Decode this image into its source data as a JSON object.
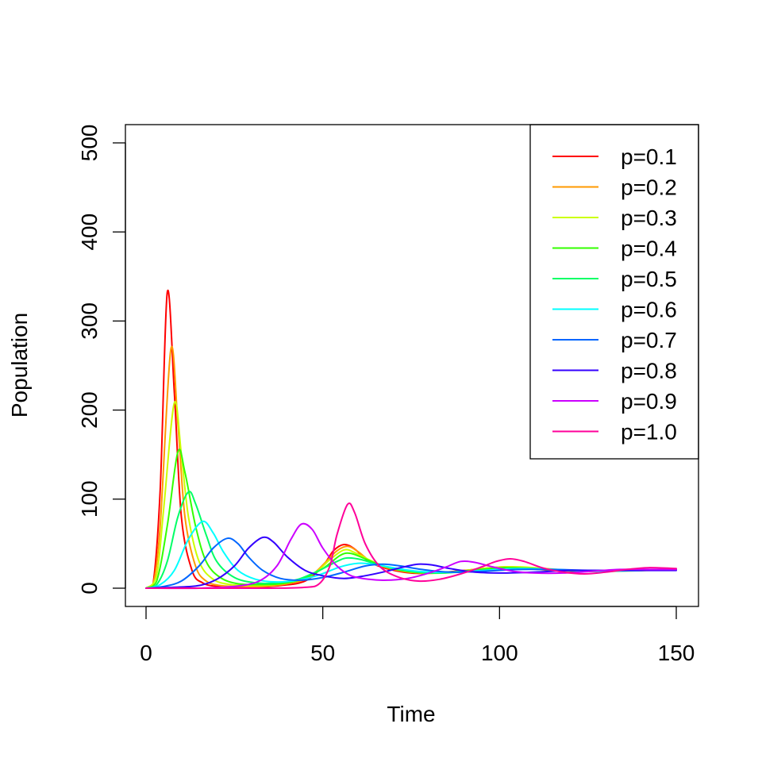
{
  "chart_data": {
    "type": "line",
    "xlabel": "Time",
    "ylabel": "Population",
    "xlim": [
      0,
      150
    ],
    "ylim": [
      0,
      500
    ],
    "x_ticks": [
      0,
      50,
      100,
      150
    ],
    "y_ticks": [
      0,
      100,
      200,
      300,
      400,
      500
    ],
    "x_tick_labels": [
      "0",
      "50",
      "100",
      "150"
    ],
    "y_tick_labels": [
      "0",
      "100",
      "200",
      "300",
      "400",
      "500"
    ],
    "grid": false,
    "legend_position": "top-right",
    "series": [
      {
        "name": "p=0.1",
        "color": "#FF0000",
        "points": [
          [
            0,
            0
          ],
          [
            2,
            5
          ],
          [
            4,
            110
          ],
          [
            6,
            332
          ],
          [
            8,
            220
          ],
          [
            10,
            80
          ],
          [
            13,
            20
          ],
          [
            16,
            6
          ],
          [
            20,
            2
          ],
          [
            25,
            1
          ],
          [
            30,
            1
          ],
          [
            38,
            3
          ],
          [
            45,
            8
          ],
          [
            50,
            25
          ],
          [
            53,
            42
          ],
          [
            56,
            49
          ],
          [
            59,
            44
          ],
          [
            63,
            30
          ],
          [
            68,
            22
          ],
          [
            75,
            17
          ],
          [
            82,
            17
          ],
          [
            90,
            20
          ],
          [
            100,
            23
          ],
          [
            108,
            22
          ],
          [
            115,
            20
          ],
          [
            125,
            19
          ],
          [
            135,
            20
          ],
          [
            150,
            21
          ]
        ]
      },
      {
        "name": "p=0.2",
        "color": "#FF9900",
        "points": [
          [
            0,
            0
          ],
          [
            2,
            4
          ],
          [
            4,
            70
          ],
          [
            7,
            268
          ],
          [
            9,
            185
          ],
          [
            11,
            80
          ],
          [
            14,
            25
          ],
          [
            17,
            8
          ],
          [
            21,
            3
          ],
          [
            27,
            2
          ],
          [
            33,
            2
          ],
          [
            40,
            5
          ],
          [
            46,
            12
          ],
          [
            51,
            30
          ],
          [
            54,
            42
          ],
          [
            57,
            47
          ],
          [
            60,
            41
          ],
          [
            64,
            29
          ],
          [
            70,
            21
          ],
          [
            78,
            17
          ],
          [
            86,
            18
          ],
          [
            95,
            22
          ],
          [
            102,
            24
          ],
          [
            110,
            22
          ],
          [
            118,
            20
          ],
          [
            128,
            19
          ],
          [
            140,
            20
          ],
          [
            150,
            21
          ]
        ]
      },
      {
        "name": "p=0.3",
        "color": "#CCFF00",
        "points": [
          [
            0,
            0
          ],
          [
            3,
            15
          ],
          [
            5,
            90
          ],
          [
            8,
            208
          ],
          [
            10,
            150
          ],
          [
            12,
            80
          ],
          [
            15,
            30
          ],
          [
            19,
            10
          ],
          [
            24,
            4
          ],
          [
            30,
            3
          ],
          [
            36,
            4
          ],
          [
            42,
            8
          ],
          [
            48,
            18
          ],
          [
            52,
            32
          ],
          [
            56,
            43
          ],
          [
            59,
            40
          ],
          [
            63,
            32
          ],
          [
            68,
            24
          ],
          [
            75,
            18
          ],
          [
            84,
            17
          ],
          [
            93,
            21
          ],
          [
            102,
            24
          ],
          [
            110,
            23
          ],
          [
            120,
            20
          ],
          [
            132,
            19
          ],
          [
            150,
            21
          ]
        ]
      },
      {
        "name": "p=0.4",
        "color": "#33FF00",
        "points": [
          [
            0,
            0
          ],
          [
            3,
            8
          ],
          [
            6,
            70
          ],
          [
            9,
            153
          ],
          [
            11,
            130
          ],
          [
            14,
            70
          ],
          [
            17,
            30
          ],
          [
            21,
            12
          ],
          [
            26,
            5
          ],
          [
            32,
            4
          ],
          [
            38,
            5
          ],
          [
            44,
            10
          ],
          [
            50,
            22
          ],
          [
            55,
            37
          ],
          [
            58,
            39
          ],
          [
            62,
            33
          ],
          [
            67,
            25
          ],
          [
            74,
            19
          ],
          [
            82,
            17
          ],
          [
            92,
            20
          ],
          [
            101,
            23
          ],
          [
            110,
            22
          ],
          [
            120,
            20
          ],
          [
            135,
            20
          ],
          [
            150,
            21
          ]
        ]
      },
      {
        "name": "p=0.5",
        "color": "#00FF66",
        "points": [
          [
            0,
            0
          ],
          [
            3,
            4
          ],
          [
            6,
            30
          ],
          [
            9,
            80
          ],
          [
            12,
            108
          ],
          [
            14,
            95
          ],
          [
            17,
            60
          ],
          [
            20,
            30
          ],
          [
            25,
            12
          ],
          [
            31,
            6
          ],
          [
            37,
            6
          ],
          [
            43,
            10
          ],
          [
            49,
            20
          ],
          [
            54,
            30
          ],
          [
            57,
            34
          ],
          [
            61,
            32
          ],
          [
            66,
            26
          ],
          [
            73,
            20
          ],
          [
            82,
            17
          ],
          [
            92,
            19
          ],
          [
            102,
            22
          ],
          [
            112,
            21
          ],
          [
            125,
            19
          ],
          [
            140,
            20
          ],
          [
            150,
            21
          ]
        ]
      },
      {
        "name": "p=0.6",
        "color": "#00FFFF",
        "points": [
          [
            0,
            0
          ],
          [
            4,
            4
          ],
          [
            8,
            20
          ],
          [
            12,
            55
          ],
          [
            16,
            75
          ],
          [
            19,
            62
          ],
          [
            22,
            40
          ],
          [
            26,
            20
          ],
          [
            31,
            10
          ],
          [
            37,
            7
          ],
          [
            43,
            9
          ],
          [
            49,
            15
          ],
          [
            55,
            24
          ],
          [
            60,
            28
          ],
          [
            64,
            27
          ],
          [
            70,
            23
          ],
          [
            77,
            19
          ],
          [
            86,
            18
          ],
          [
            96,
            20
          ],
          [
            106,
            22
          ],
          [
            116,
            21
          ],
          [
            128,
            19
          ],
          [
            140,
            20
          ],
          [
            150,
            21
          ]
        ]
      },
      {
        "name": "p=0.7",
        "color": "#0066FF",
        "points": [
          [
            0,
            0
          ],
          [
            5,
            2
          ],
          [
            10,
            8
          ],
          [
            15,
            25
          ],
          [
            19,
            45
          ],
          [
            23,
            56
          ],
          [
            26,
            50
          ],
          [
            29,
            35
          ],
          [
            33,
            20
          ],
          [
            38,
            11
          ],
          [
            44,
            9
          ],
          [
            50,
            12
          ],
          [
            56,
            18
          ],
          [
            62,
            25
          ],
          [
            67,
            27
          ],
          [
            72,
            25
          ],
          [
            78,
            21
          ],
          [
            86,
            18
          ],
          [
            95,
            19
          ],
          [
            105,
            21
          ],
          [
            115,
            21
          ],
          [
            127,
            20
          ],
          [
            140,
            20
          ],
          [
            150,
            21
          ]
        ]
      },
      {
        "name": "p=0.8",
        "color": "#3300FF",
        "points": [
          [
            0,
            0
          ],
          [
            8,
            1
          ],
          [
            15,
            3
          ],
          [
            20,
            10
          ],
          [
            25,
            25
          ],
          [
            29,
            45
          ],
          [
            33,
            57
          ],
          [
            36,
            52
          ],
          [
            40,
            35
          ],
          [
            45,
            20
          ],
          [
            50,
            14
          ],
          [
            56,
            11
          ],
          [
            62,
            14
          ],
          [
            68,
            19
          ],
          [
            73,
            24
          ],
          [
            77,
            27
          ],
          [
            81,
            26
          ],
          [
            86,
            22
          ],
          [
            93,
            18
          ],
          [
            101,
            17
          ],
          [
            110,
            18
          ],
          [
            120,
            20
          ],
          [
            130,
            20
          ],
          [
            140,
            20
          ],
          [
            150,
            20
          ]
        ]
      },
      {
        "name": "p=0.9",
        "color": "#CC00FF",
        "points": [
          [
            0,
            0
          ],
          [
            15,
            0
          ],
          [
            25,
            2
          ],
          [
            32,
            8
          ],
          [
            37,
            25
          ],
          [
            41,
            55
          ],
          [
            44,
            72
          ],
          [
            47,
            66
          ],
          [
            50,
            45
          ],
          [
            54,
            25
          ],
          [
            58,
            14
          ],
          [
            63,
            10
          ],
          [
            68,
            9
          ],
          [
            74,
            11
          ],
          [
            80,
            17
          ],
          [
            85,
            24
          ],
          [
            89,
            30
          ],
          [
            93,
            29
          ],
          [
            98,
            24
          ],
          [
            104,
            19
          ],
          [
            110,
            17
          ],
          [
            118,
            17
          ],
          [
            126,
            19
          ],
          [
            134,
            21
          ],
          [
            142,
            21
          ],
          [
            150,
            21
          ]
        ]
      },
      {
        "name": "p=1.0",
        "color": "#FF0099",
        "points": [
          [
            0,
            0
          ],
          [
            20,
            0
          ],
          [
            35,
            0
          ],
          [
            45,
            1
          ],
          [
            49,
            5
          ],
          [
            52,
            25
          ],
          [
            54,
            60
          ],
          [
            57,
            94
          ],
          [
            59,
            85
          ],
          [
            62,
            50
          ],
          [
            66,
            25
          ],
          [
            71,
            13
          ],
          [
            77,
            8
          ],
          [
            83,
            10
          ],
          [
            89,
            16
          ],
          [
            95,
            24
          ],
          [
            99,
            30
          ],
          [
            103,
            33
          ],
          [
            107,
            30
          ],
          [
            112,
            23
          ],
          [
            118,
            18
          ],
          [
            124,
            16
          ],
          [
            130,
            18
          ],
          [
            136,
            21
          ],
          [
            142,
            23
          ],
          [
            150,
            22
          ]
        ]
      }
    ]
  }
}
